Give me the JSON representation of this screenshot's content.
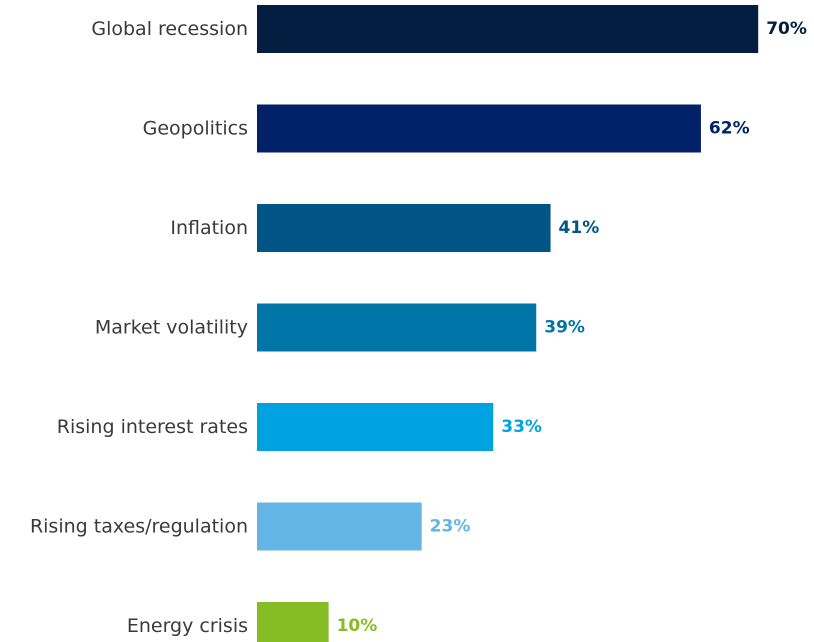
{
  "chart_data": {
    "type": "bar",
    "orientation": "horizontal",
    "categories": [
      "Global recession",
      "Geopolitics",
      "Inflation",
      "Market volatility",
      "Rising interest rates",
      "Rising taxes/regulation",
      "Energy crisis"
    ],
    "values": [
      70,
      62,
      41,
      39,
      33,
      23,
      10
    ],
    "value_labels": [
      "70%",
      "62%",
      "41%",
      "39%",
      "33%",
      "23%",
      "10%"
    ],
    "colors": [
      "#041e42",
      "#012169",
      "#005587",
      "#0076a8",
      "#00a3e0",
      "#62b5e5",
      "#86bc25"
    ],
    "unit": "%",
    "xlim": [
      0,
      70
    ],
    "grid": false,
    "legend": "none"
  }
}
